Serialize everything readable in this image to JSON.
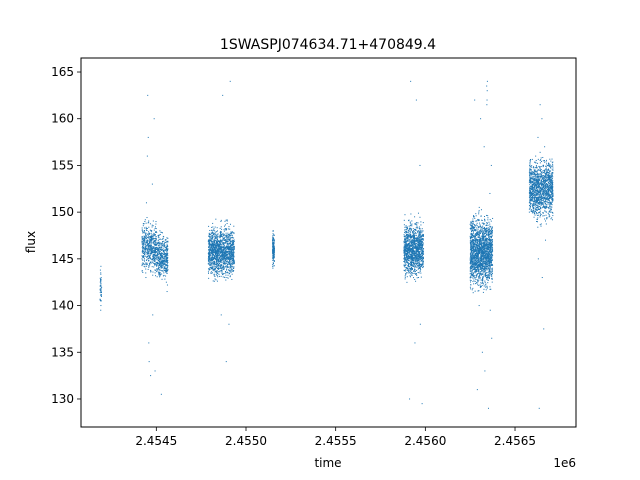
{
  "chart_data": {
    "type": "scatter",
    "title": "1SWASPJ074634.71+470849.4",
    "xlabel": "time",
    "ylabel": "flux",
    "x_offset_label": "1e6",
    "xlim": [
      2454080,
      2456840
    ],
    "ylim": [
      127,
      166.5
    ],
    "x_ticks": [
      2454500,
      2455000,
      2455500,
      2456000,
      2456500
    ],
    "x_tick_labels": [
      "2.4545",
      "2.4550",
      "2.4555",
      "2.4560",
      "2.4565"
    ],
    "y_ticks": [
      130,
      135,
      140,
      145,
      150,
      155,
      160,
      165
    ],
    "y_tick_labels": [
      "130",
      "135",
      "140",
      "145",
      "150",
      "155",
      "160",
      "165"
    ],
    "grid": false,
    "marker_color": "#1f77b4",
    "points": [
      [
        2454190,
        139.5
      ],
      [
        2454190,
        140.5
      ],
      [
        2454191,
        141.2
      ],
      [
        2454192,
        142.0
      ],
      [
        2454191,
        140.0
      ],
      [
        2454192,
        141.8
      ],
      [
        2454190,
        143.5
      ],
      [
        2454191,
        144.2
      ],
      [
        2454420,
        145.0
      ],
      [
        2454425,
        146.5
      ],
      [
        2454430,
        147.8
      ],
      [
        2454432,
        144.2
      ],
      [
        2454436,
        149.0
      ],
      [
        2454440,
        146.0
      ],
      [
        2454442,
        143.0
      ],
      [
        2454445,
        151.0
      ],
      [
        2454448,
        145.5
      ],
      [
        2454450,
        156.0
      ],
      [
        2454452,
        162.5
      ],
      [
        2454455,
        158.0
      ],
      [
        2454458,
        136.0
      ],
      [
        2454460,
        134.0
      ],
      [
        2454462,
        146.8
      ],
      [
        2454465,
        145.2
      ],
      [
        2454468,
        132.5
      ],
      [
        2454470,
        148.0
      ],
      [
        2454473,
        145.8
      ],
      [
        2454476,
        147.0
      ],
      [
        2454478,
        153.0
      ],
      [
        2454480,
        139.0
      ],
      [
        2454483,
        146.2
      ],
      [
        2454486,
        144.8
      ],
      [
        2454488,
        160.0
      ],
      [
        2454490,
        146.5
      ],
      [
        2454493,
        133.0
      ],
      [
        2454496,
        145.0
      ],
      [
        2454500,
        146.0
      ],
      [
        2454505,
        145.5
      ],
      [
        2454510,
        147.5
      ],
      [
        2454512,
        144.0
      ],
      [
        2454515,
        146.8
      ],
      [
        2454518,
        143.5
      ],
      [
        2454520,
        148.0
      ],
      [
        2454523,
        145.0
      ],
      [
        2454526,
        146.5
      ],
      [
        2454528,
        130.5
      ],
      [
        2454530,
        145.2
      ],
      [
        2454533,
        146.0
      ],
      [
        2454536,
        144.5
      ],
      [
        2454538,
        147.2
      ],
      [
        2454540,
        145.8
      ],
      [
        2454543,
        146.4
      ],
      [
        2454545,
        144.8
      ],
      [
        2454548,
        145.5
      ],
      [
        2454550,
        146.2
      ],
      [
        2454553,
        147.0
      ],
      [
        2454556,
        142.5
      ],
      [
        2454558,
        143.8
      ],
      [
        2454560,
        141.5
      ],
      [
        2454562,
        142.2
      ],
      [
        2454790,
        145.0
      ],
      [
        2454800,
        146.5
      ],
      [
        2454810,
        147.5
      ],
      [
        2454815,
        144.0
      ],
      [
        2454820,
        146.0
      ],
      [
        2454825,
        148.0
      ],
      [
        2454830,
        145.5
      ],
      [
        2454835,
        143.5
      ],
      [
        2454840,
        147.0
      ],
      [
        2454845,
        146.2
      ],
      [
        2454850,
        144.8
      ],
      [
        2454855,
        145.8
      ],
      [
        2454860,
        149.0
      ],
      [
        2454862,
        139.0
      ],
      [
        2454865,
        146.5
      ],
      [
        2454868,
        145.0
      ],
      [
        2454870,
        162.5
      ],
      [
        2454872,
        147.2
      ],
      [
        2454875,
        144.5
      ],
      [
        2454878,
        146.0
      ],
      [
        2454880,
        148.5
      ],
      [
        2454882,
        143.0
      ],
      [
        2454885,
        145.5
      ],
      [
        2454888,
        146.8
      ],
      [
        2454890,
        134.0
      ],
      [
        2454892,
        145.2
      ],
      [
        2454895,
        147.5
      ],
      [
        2454898,
        144.2
      ],
      [
        2454900,
        146.0
      ],
      [
        2454905,
        138.0
      ],
      [
        2454908,
        145.8
      ],
      [
        2454910,
        147.0
      ],
      [
        2454912,
        164.0
      ],
      [
        2454915,
        145.0
      ],
      [
        2454918,
        146.5
      ],
      [
        2454920,
        144.0
      ],
      [
        2454925,
        146.2
      ],
      [
        2454930,
        145.5
      ],
      [
        2455150,
        144.0
      ],
      [
        2455152,
        145.0
      ],
      [
        2455153,
        146.0
      ],
      [
        2455154,
        147.0
      ],
      [
        2455155,
        145.5
      ],
      [
        2455151,
        146.5
      ],
      [
        2455152,
        148.0
      ],
      [
        2455153,
        144.5
      ],
      [
        2455880,
        145.0
      ],
      [
        2455890,
        146.5
      ],
      [
        2455895,
        147.8
      ],
      [
        2455900,
        144.0
      ],
      [
        2455905,
        146.0
      ],
      [
        2455910,
        148.5
      ],
      [
        2455912,
        130.0
      ],
      [
        2455915,
        145.5
      ],
      [
        2455918,
        164.0
      ],
      [
        2455920,
        143.5
      ],
      [
        2455925,
        147.0
      ],
      [
        2455930,
        146.2
      ],
      [
        2455935,
        144.8
      ],
      [
        2455938,
        145.8
      ],
      [
        2455940,
        149.5
      ],
      [
        2455942,
        136.0
      ],
      [
        2455945,
        146.5
      ],
      [
        2455948,
        145.0
      ],
      [
        2455950,
        162.0
      ],
      [
        2455952,
        147.2
      ],
      [
        2455955,
        144.5
      ],
      [
        2455958,
        146.0
      ],
      [
        2455960,
        148.0
      ],
      [
        2455962,
        143.0
      ],
      [
        2455965,
        145.5
      ],
      [
        2455968,
        146.8
      ],
      [
        2455970,
        155.0
      ],
      [
        2455972,
        138.0
      ],
      [
        2455975,
        147.5
      ],
      [
        2455978,
        144.2
      ],
      [
        2455980,
        146.0
      ],
      [
        2455982,
        129.5
      ],
      [
        2455985,
        145.8
      ],
      [
        2455988,
        147.0
      ],
      [
        2456250,
        145.0
      ],
      [
        2456255,
        146.5
      ],
      [
        2456260,
        147.5
      ],
      [
        2456265,
        144.0
      ],
      [
        2456270,
        146.0
      ],
      [
        2456275,
        162.0
      ],
      [
        2456278,
        148.0
      ],
      [
        2456280,
        145.5
      ],
      [
        2456282,
        143.5
      ],
      [
        2456285,
        147.0
      ],
      [
        2456288,
        146.2
      ],
      [
        2456290,
        131.0
      ],
      [
        2456292,
        144.8
      ],
      [
        2456295,
        145.8
      ],
      [
        2456298,
        150.0
      ],
      [
        2456300,
        140.0
      ],
      [
        2456302,
        146.5
      ],
      [
        2456305,
        145.0
      ],
      [
        2456308,
        160.0
      ],
      [
        2456310,
        147.2
      ],
      [
        2456312,
        144.5
      ],
      [
        2456315,
        146.0
      ],
      [
        2456318,
        135.0
      ],
      [
        2456320,
        148.5
      ],
      [
        2456322,
        143.0
      ],
      [
        2456325,
        145.5
      ],
      [
        2456328,
        157.0
      ],
      [
        2456330,
        146.8
      ],
      [
        2456332,
        133.0
      ],
      [
        2456335,
        145.2
      ],
      [
        2456338,
        147.5
      ],
      [
        2456340,
        144.2
      ],
      [
        2456342,
        163.5
      ],
      [
        2456344,
        162.0
      ],
      [
        2456346,
        164.0
      ],
      [
        2456343,
        161.5
      ],
      [
        2456345,
        163.0
      ],
      [
        2456350,
        146.0
      ],
      [
        2456352,
        129.0
      ],
      [
        2456355,
        145.8
      ],
      [
        2456358,
        147.0
      ],
      [
        2456360,
        152.0
      ],
      [
        2456362,
        139.5
      ],
      [
        2456365,
        146.5
      ],
      [
        2456368,
        155.0
      ],
      [
        2456370,
        136.5
      ],
      [
        2456580,
        150.0
      ],
      [
        2456590,
        152.5
      ],
      [
        2456600,
        154.0
      ],
      [
        2456605,
        151.0
      ],
      [
        2456610,
        153.5
      ],
      [
        2456615,
        156.0
      ],
      [
        2456620,
        149.0
      ],
      [
        2456625,
        152.0
      ],
      [
        2456628,
        158.0
      ],
      [
        2456630,
        145.0
      ],
      [
        2456632,
        153.0
      ],
      [
        2456635,
        129.0
      ],
      [
        2456638,
        151.5
      ],
      [
        2456640,
        161.5
      ],
      [
        2456642,
        154.5
      ],
      [
        2456645,
        148.5
      ],
      [
        2456648,
        152.8
      ],
      [
        2456650,
        160.0
      ],
      [
        2456652,
        143.0
      ],
      [
        2456655,
        151.0
      ],
      [
        2456658,
        155.5
      ],
      [
        2456660,
        137.5
      ],
      [
        2456662,
        150.5
      ],
      [
        2456665,
        157.0
      ],
      [
        2456668,
        152.0
      ],
      [
        2456670,
        147.0
      ],
      [
        2456672,
        153.5
      ],
      [
        2456675,
        154.0
      ],
      [
        2456680,
        151.0
      ],
      [
        2456685,
        152.5
      ],
      [
        2456690,
        149.5
      ],
      [
        2456695,
        151.8
      ],
      [
        2456700,
        153.0
      ],
      [
        2456705,
        150.0
      ],
      [
        2456710,
        152.2
      ]
    ],
    "dense_segments": [
      {
        "x0": 2454185,
        "x1": 2454195,
        "ymin": 139.3,
        "ymax": 144.5,
        "count": 40
      },
      {
        "x0": 2454420,
        "x1": 2454500,
        "ymin": 142.5,
        "ymax": 150.0,
        "count": 500
      },
      {
        "x0": 2454500,
        "x1": 2454565,
        "ymin": 142.0,
        "ymax": 148.5,
        "count": 420
      },
      {
        "x0": 2454790,
        "x1": 2454935,
        "ymin": 142.0,
        "ymax": 149.5,
        "count": 1400
      },
      {
        "x0": 2455148,
        "x1": 2455158,
        "ymin": 143.5,
        "ymax": 148.5,
        "count": 160
      },
      {
        "x0": 2455880,
        "x1": 2455990,
        "ymin": 142.0,
        "ymax": 150.0,
        "count": 1200
      },
      {
        "x0": 2456250,
        "x1": 2456375,
        "ymin": 140.5,
        "ymax": 151.0,
        "count": 1800
      },
      {
        "x0": 2456580,
        "x1": 2456712,
        "ymin": 148.0,
        "ymax": 157.0,
        "count": 1300
      }
    ]
  }
}
